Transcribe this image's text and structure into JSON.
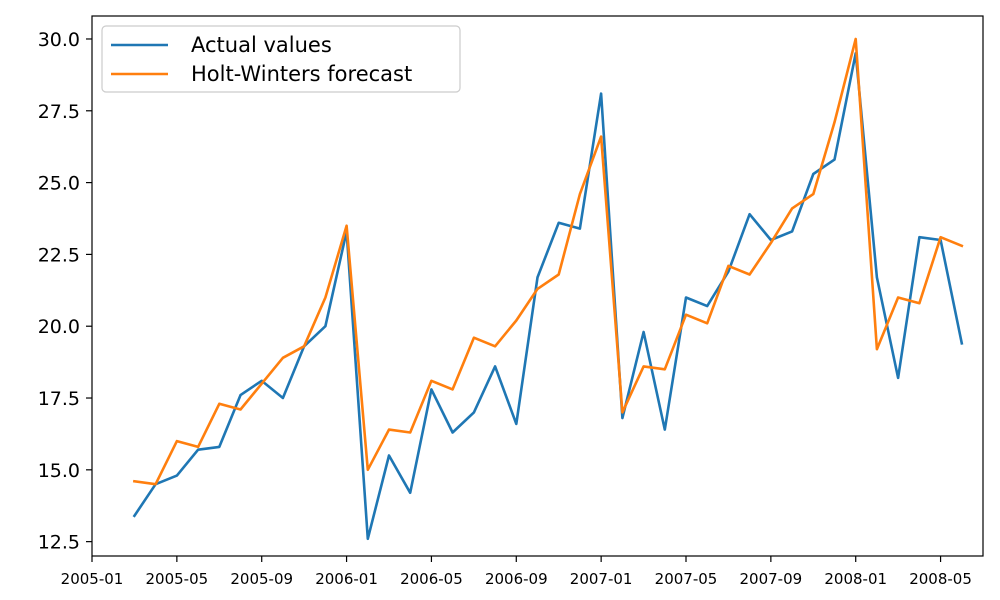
{
  "chart_data": {
    "type": "line",
    "title": "",
    "xlabel": "",
    "ylabel": "",
    "x": [
      "2005-03",
      "2005-04",
      "2005-05",
      "2005-06",
      "2005-07",
      "2005-08",
      "2005-09",
      "2005-10",
      "2005-11",
      "2005-12",
      "2006-01",
      "2006-02",
      "2006-03",
      "2006-04",
      "2006-05",
      "2006-06",
      "2006-07",
      "2006-08",
      "2006-09",
      "2006-10",
      "2006-11",
      "2006-12",
      "2007-01",
      "2007-02",
      "2007-03",
      "2007-04",
      "2007-05",
      "2007-06",
      "2007-07",
      "2007-08",
      "2007-09",
      "2007-10",
      "2007-11",
      "2007-12",
      "2008-01",
      "2008-02",
      "2008-03",
      "2008-04",
      "2008-05",
      "2008-06"
    ],
    "xlim": [
      "2005-01",
      "2008-07"
    ],
    "x_ticks": [
      "2005-01",
      "2005-05",
      "2005-09",
      "2006-01",
      "2006-05",
      "2006-09",
      "2007-01",
      "2007-05",
      "2007-09",
      "2008-01",
      "2008-05"
    ],
    "ylim": [
      12.0,
      30.8
    ],
    "y_ticks": [
      12.5,
      15.0,
      17.5,
      20.0,
      22.5,
      25.0,
      27.5,
      30.0
    ],
    "y_tick_labels": [
      "12.5",
      "15.0",
      "17.5",
      "20.0",
      "22.5",
      "25.0",
      "27.5",
      "30.0"
    ],
    "grid": false,
    "legend_position": "top-left",
    "series": [
      {
        "name": "Actual values",
        "color": "#1f77b4",
        "values": [
          13.4,
          14.5,
          14.8,
          15.7,
          15.8,
          17.6,
          18.1,
          17.5,
          19.3,
          20.0,
          23.3,
          12.6,
          15.5,
          14.2,
          17.8,
          16.3,
          17.0,
          18.6,
          16.6,
          21.7,
          23.6,
          23.4,
          28.1,
          16.8,
          19.8,
          16.4,
          21.0,
          20.7,
          21.9,
          23.9,
          23.0,
          23.3,
          25.3,
          25.8,
          29.5,
          21.7,
          18.2,
          23.1,
          23.0,
          19.4
        ]
      },
      {
        "name": "Holt-Winters forecast",
        "color": "#ff7f0e",
        "values": [
          14.6,
          14.5,
          16.0,
          15.8,
          17.3,
          17.1,
          18.0,
          18.9,
          19.3,
          21.0,
          23.5,
          15.0,
          16.4,
          16.3,
          18.1,
          17.8,
          19.6,
          19.3,
          20.2,
          21.3,
          21.8,
          24.6,
          26.6,
          17.0,
          18.6,
          18.5,
          20.4,
          20.1,
          22.1,
          21.8,
          22.9,
          24.1,
          24.6,
          27.1,
          30.0,
          19.2,
          21.0,
          20.8,
          23.1,
          22.8
        ]
      }
    ]
  }
}
